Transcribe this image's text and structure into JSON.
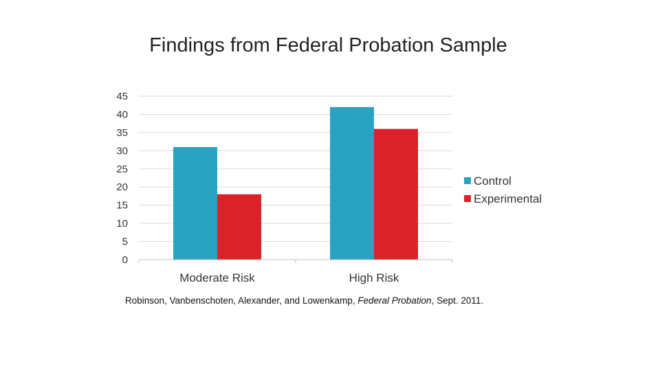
{
  "slide": {
    "title": "Findings from Federal Probation Sample"
  },
  "citation": {
    "authors": "Robinson, Vanbenschoten, Alexander, and Lowenkamp, ",
    "journal": "Federal Probation",
    "date": ", Sept. 2011."
  },
  "chart_data": {
    "type": "bar",
    "title": "Findings from Federal Probation Sample",
    "categories": [
      "Moderate Risk",
      "High Risk"
    ],
    "series": [
      {
        "name": "Control",
        "values": [
          31,
          42
        ],
        "color": "#2aa3c2"
      },
      {
        "name": "Experimental",
        "values": [
          18,
          36
        ],
        "color": "#dc2229"
      }
    ],
    "ylim": [
      0,
      45
    ],
    "yticks": [
      0,
      5,
      10,
      15,
      20,
      25,
      30,
      35,
      40,
      45
    ],
    "xlabel": "",
    "ylabel": "",
    "grid": true,
    "legend": "right"
  }
}
